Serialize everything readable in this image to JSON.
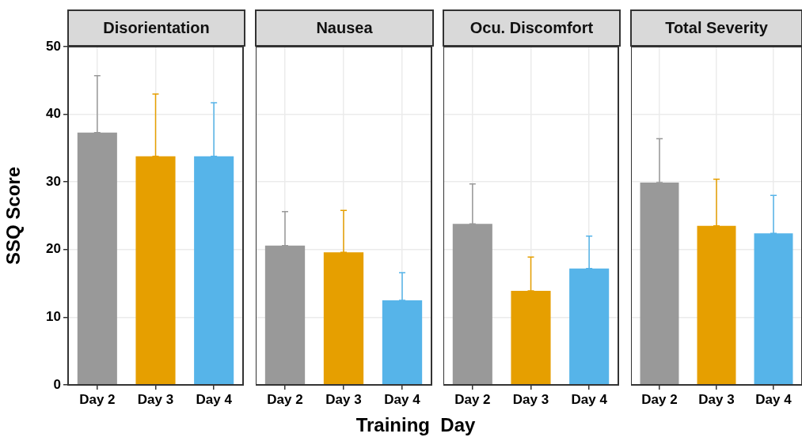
{
  "chart_data": [
    {
      "type": "bar",
      "title": "Disorientation",
      "ylabel": "SSQ Score",
      "categories": [
        "Day 2",
        "Day 3",
        "Day 4"
      ],
      "values": [
        37.3,
        33.8,
        33.8
      ],
      "colors": [
        "#999999",
        "#e69f00",
        "#56b4e9"
      ],
      "errors": [
        [
          37.3,
          45.7
        ],
        [
          33.8,
          43.0
        ],
        [
          33.8,
          41.7
        ]
      ],
      "ylim": [
        0,
        50
      ],
      "yticks": [
        0,
        10,
        20,
        30,
        40,
        50
      ],
      "grid": true,
      "legend": false
    },
    {
      "type": "bar",
      "title": "Nausea",
      "xlabel": "Training  Day",
      "categories": [
        "Day 2",
        "Day 3",
        "Day 4"
      ],
      "values": [
        20.6,
        19.6,
        12.5
      ],
      "colors": [
        "#999999",
        "#e69f00",
        "#56b4e9"
      ],
      "errors": [
        [
          20.6,
          25.6
        ],
        [
          19.6,
          25.8
        ],
        [
          12.5,
          16.6
        ]
      ],
      "ylim": [
        0,
        50
      ],
      "yticks": [
        0,
        10,
        20,
        30,
        40,
        50
      ],
      "tick_labels": "x",
      "grid": true,
      "legend": false
    },
    {
      "type": "bar",
      "title": "Ocu. Discomfort",
      "categories": [
        "Day 2",
        "Day 3",
        "Day 4"
      ],
      "values": [
        23.8,
        13.9,
        17.2
      ],
      "colors": [
        "#999999",
        "#e69f00",
        "#56b4e9"
      ],
      "errors": [
        [
          23.8,
          29.7
        ],
        [
          13.9,
          18.9
        ],
        [
          17.2,
          22.0
        ]
      ],
      "ylim": [
        0,
        50
      ],
      "yticks": [
        0,
        10,
        20,
        30,
        40,
        50
      ],
      "tick_labels": "x",
      "grid": true,
      "legend": false
    },
    {
      "type": "bar",
      "title": "Total Severity",
      "categories": [
        "Day 2",
        "Day 3",
        "Day 4"
      ],
      "values": [
        29.9,
        23.5,
        22.4
      ],
      "colors": [
        "#999999",
        "#e69f00",
        "#56b4e9"
      ],
      "errors": [
        [
          29.9,
          36.4
        ],
        [
          23.5,
          30.4
        ],
        [
          22.4,
          28.0
        ]
      ],
      "ylim": [
        0,
        50
      ],
      "yticks": [
        0,
        10,
        20,
        30,
        40,
        50
      ],
      "tick_labels": "x",
      "grid": true,
      "legend": false
    }
  ]
}
